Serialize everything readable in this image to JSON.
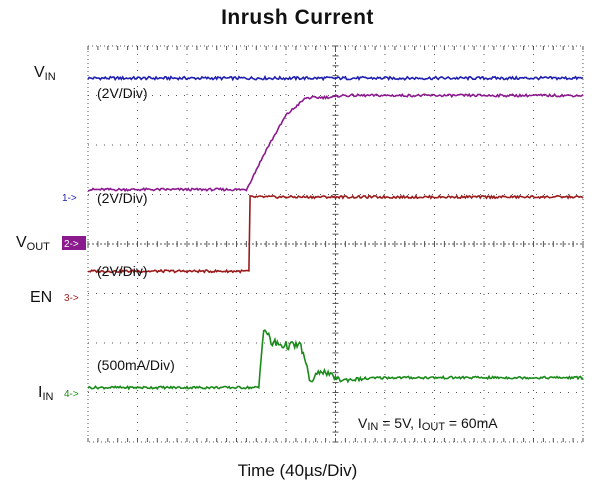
{
  "title": "Inrush Current",
  "x_axis_label": "Time (40µs/Div)",
  "annotation": {
    "vin_sub": "IN",
    "vin_text": " = 5V,  I",
    "iout_sub": "OUT",
    "iout_text": " = 60mA",
    "prefix_v": "V"
  },
  "channel_labels": {
    "vin": {
      "main": "V",
      "sub": "IN"
    },
    "vout": {
      "main": "V",
      "sub": "OUT"
    },
    "en": {
      "main": "EN"
    },
    "iin": {
      "main": "I",
      "sub": "IN"
    }
  },
  "scale_labels": {
    "vin": "(2V/Div)",
    "vout": "(2V/Div)",
    "en": "(2V/Div)",
    "iin": "(500mA/Div)"
  },
  "channel_markers": {
    "ch1": "1->",
    "ch2": "2->",
    "ch3": "3->",
    "ch4": "4->"
  },
  "colors": {
    "vin": "#1f1fb0",
    "vout": "#8b1a8f",
    "en": "#9b1b1b",
    "iin": "#1a8a1a",
    "grid": "#555555"
  },
  "chart_data": {
    "type": "line",
    "title": "Inrush Current",
    "xlabel": "Time (40µs/Div)",
    "x_divisions": 10,
    "y_divisions": 8,
    "grid": true,
    "series": [
      {
        "name": "VIN",
        "unit_per_div": "2V/Div",
        "points_div": [
          [
            0,
            7.35
          ],
          [
            10,
            7.35
          ]
        ]
      },
      {
        "name": "VOUT",
        "unit_per_div": "2V/Div",
        "points_div": [
          [
            0,
            5.1
          ],
          [
            3.2,
            5.1
          ],
          [
            3.6,
            5.9
          ],
          [
            4.0,
            6.6
          ],
          [
            4.4,
            6.95
          ],
          [
            5.0,
            6.97
          ],
          [
            5.1,
            7.0
          ],
          [
            10,
            7.0
          ]
        ]
      },
      {
        "name": "EN",
        "unit_per_div": "2V/Div",
        "points_div": [
          [
            0,
            3.45
          ],
          [
            3.25,
            3.45
          ],
          [
            3.27,
            4.95
          ],
          [
            10,
            4.95
          ]
        ]
      },
      {
        "name": "IIN",
        "unit_per_div": "500mA/Div",
        "points_div": [
          [
            0,
            1.1
          ],
          [
            3.45,
            1.1
          ],
          [
            3.55,
            2.35
          ],
          [
            3.7,
            2.0
          ],
          [
            4.0,
            1.95
          ],
          [
            4.3,
            1.95
          ],
          [
            4.5,
            1.2
          ],
          [
            4.7,
            1.45
          ],
          [
            5.1,
            1.25
          ],
          [
            6.0,
            1.3
          ],
          [
            10,
            1.3
          ]
        ]
      }
    ]
  }
}
